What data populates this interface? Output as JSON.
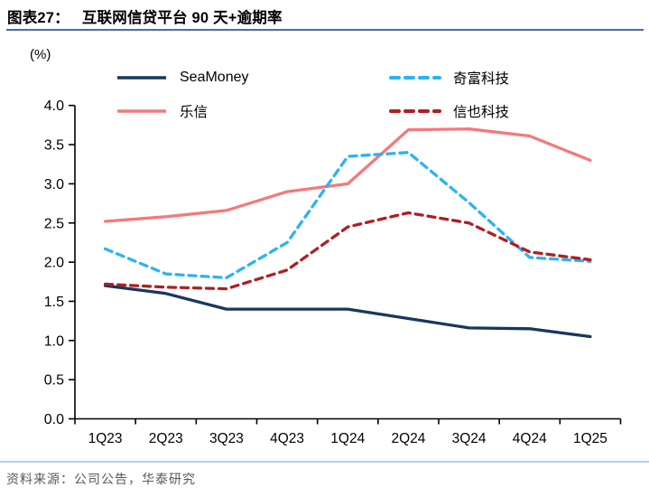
{
  "header": {
    "figure_label": "图表27：",
    "title": "互联网信贷平台 90 天+逾期率"
  },
  "source": {
    "text": "资料来源：公司公告，华泰研究"
  },
  "colors": {
    "title_underline": "#3F6FA5",
    "footer_divider": "#B7CFE4",
    "source_text": "#595959",
    "axis": "#000000",
    "seamoney": "#17375E",
    "lexin": "#F4797C",
    "qifu": "#2AB4F0",
    "xinye": "#AF1E23"
  },
  "chart_data": {
    "type": "line",
    "title": "互联网信贷平台 90 天+逾期率",
    "ylabel": "(%)",
    "xlabel": "",
    "categories": [
      "1Q23",
      "2Q23",
      "3Q23",
      "4Q23",
      "1Q24",
      "2Q24",
      "3Q24",
      "4Q24",
      "1Q25"
    ],
    "series": [
      {
        "name": "SeaMoney",
        "style": "solid",
        "color": "#17375E",
        "values": [
          1.7,
          1.6,
          1.4,
          1.4,
          1.4,
          1.28,
          1.16,
          1.15,
          1.05
        ]
      },
      {
        "name": "乐信",
        "style": "solid",
        "color": "#F4797C",
        "values": [
          2.52,
          2.58,
          2.66,
          2.9,
          3.0,
          3.69,
          3.7,
          3.61,
          3.3
        ]
      },
      {
        "name": "奇富科技",
        "style": "dashed",
        "color": "#2AB4F0",
        "values": [
          2.17,
          1.85,
          1.8,
          2.25,
          3.35,
          3.4,
          2.76,
          2.06,
          2.01
        ]
      },
      {
        "name": "信也科技",
        "style": "dashed",
        "color": "#AF1E23",
        "values": [
          1.72,
          1.68,
          1.66,
          1.9,
          2.45,
          2.63,
          2.5,
          2.13,
          2.03
        ]
      }
    ],
    "ylim": [
      0.0,
      4.0
    ],
    "ytick_step": 0.5,
    "ytick_labels": [
      "0.0",
      "0.5",
      "1.0",
      "1.5",
      "2.0",
      "2.5",
      "3.0",
      "3.5",
      "4.0"
    ],
    "grid": false,
    "legend_position": "top",
    "legend_display_order": [
      0,
      2,
      1,
      3
    ]
  }
}
